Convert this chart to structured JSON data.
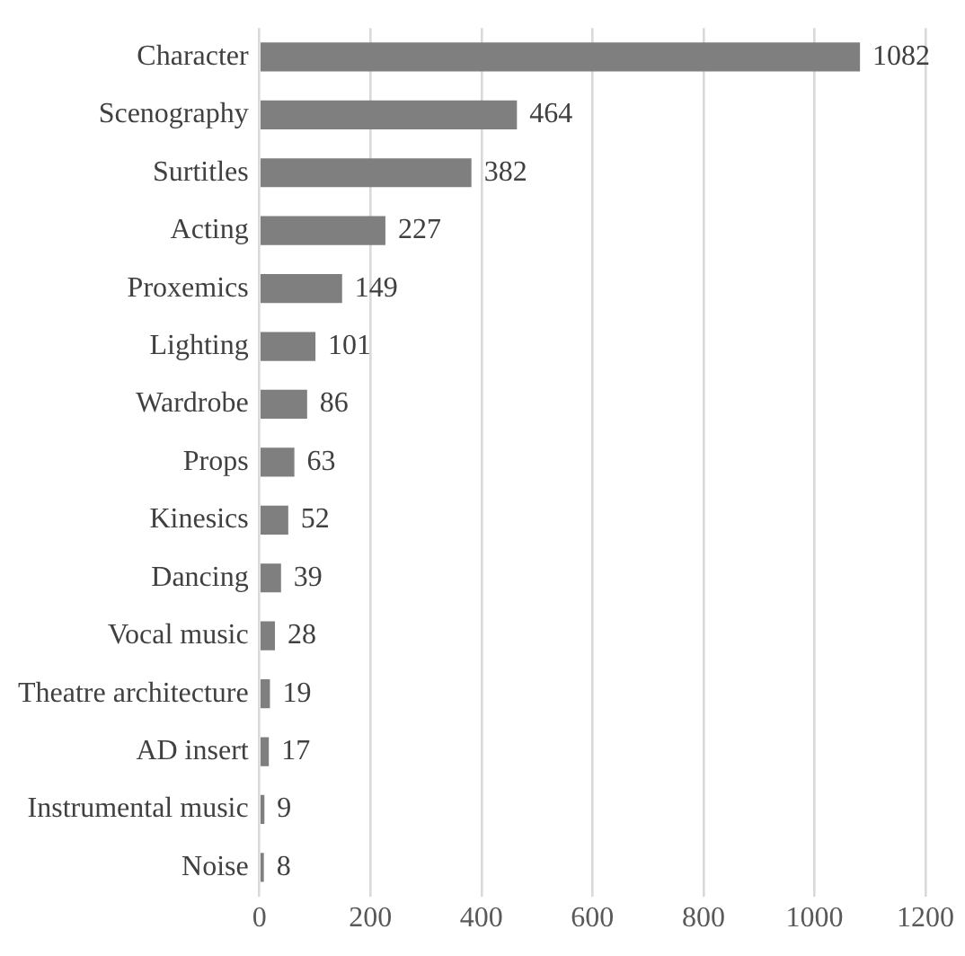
{
  "chart_data": {
    "type": "bar",
    "orientation": "horizontal",
    "categories": [
      "Character",
      "Scenography",
      "Surtitles",
      "Acting",
      "Proxemics",
      "Lighting",
      "Wardrobe",
      "Props",
      "Kinesics",
      "Dancing",
      "Vocal music",
      "Theatre architecture",
      "AD insert",
      "Instrumental music",
      "Noise"
    ],
    "values": [
      1082,
      464,
      382,
      227,
      149,
      101,
      86,
      63,
      52,
      39,
      28,
      19,
      17,
      9,
      8
    ],
    "color": "#7f7f7f",
    "xlim": [
      0,
      1200
    ],
    "xticks": [
      0,
      200,
      400,
      600,
      800,
      1000,
      1200
    ],
    "grid": "x",
    "data_labels": true
  }
}
